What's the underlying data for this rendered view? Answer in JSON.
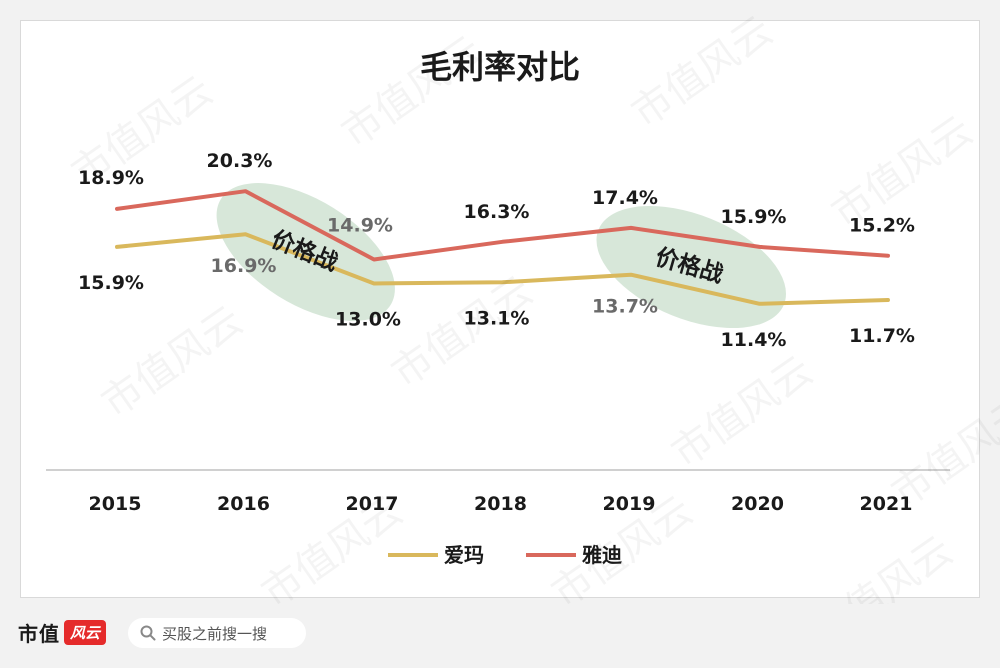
{
  "chart_data": {
    "type": "line",
    "title": "毛利率对比",
    "categories": [
      "2015",
      "2016",
      "2017",
      "2018",
      "2019",
      "2020",
      "2021"
    ],
    "series": [
      {
        "name": "爱玛",
        "values": [
          15.9,
          16.9,
          13.0,
          13.1,
          13.7,
          11.4,
          11.7
        ],
        "labels": [
          "15.9%",
          "16.9%",
          "13.0%",
          "13.1%",
          "13.7%",
          "11.4%",
          "11.7%"
        ],
        "color": "#d9b85c"
      },
      {
        "name": "雅迪",
        "values": [
          18.9,
          20.3,
          14.9,
          16.3,
          17.4,
          15.9,
          15.2
        ],
        "labels": [
          "18.9%",
          "20.3%",
          "14.9%",
          "16.3%",
          "17.4%",
          "15.9%",
          "15.2%"
        ],
        "color": "#d9685c"
      }
    ],
    "annotations": [
      {
        "text": "价格战",
        "from": "2016",
        "to": "2017"
      },
      {
        "text": "价格战",
        "from": "2019",
        "to": "2020"
      }
    ],
    "ylim": [
      0,
      28
    ],
    "grid": false,
    "legend": "bottom",
    "highlight_color": "#c9dfcc"
  },
  "watermark": "市值风云",
  "footer": {
    "brand": "市值",
    "brand_badge": "风云",
    "search_placeholder": "买股之前搜一搜"
  }
}
